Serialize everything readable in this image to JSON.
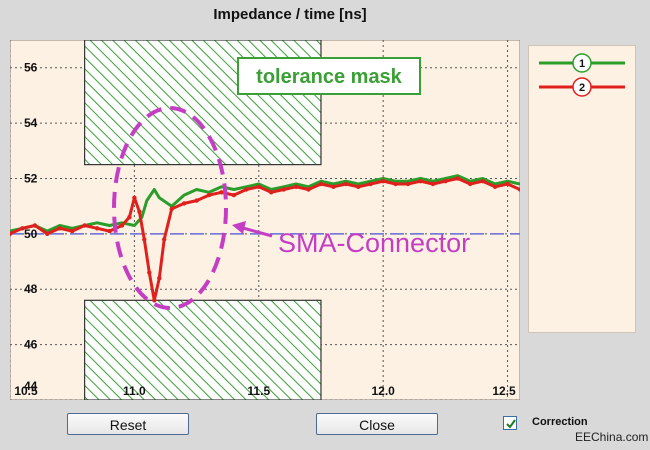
{
  "window": {
    "title": "Impedance  / time [ns]"
  },
  "buttons": {
    "reset_label": "Reset",
    "close_label": "Close"
  },
  "correction": {
    "label": "Correction",
    "checked": true
  },
  "watermark": "EEChina.com",
  "annotations": {
    "mask_label": "tolerance mask",
    "connector_label": "SMA-Connector"
  },
  "colors": {
    "plot_bg": "#fdf1e4",
    "mask_green": "#3aa035",
    "series_1": "#2a9d2a",
    "series_2": "#e0201c",
    "annotation": "#c43ec4",
    "reference_line": "#6a6ad6"
  },
  "legend": [
    {
      "number": "1",
      "color": "#2a9d2a"
    },
    {
      "number": "2",
      "color": "#e0201c"
    }
  ],
  "chart_data": {
    "type": "line",
    "title": "Impedance  / time [ns]",
    "xlabel": "",
    "ylabel": "",
    "xlim": [
      10.5,
      12.55
    ],
    "ylim": [
      44,
      57
    ],
    "x_ticks": [
      "10.5",
      "11.0",
      "11.5",
      "12.0",
      "12.5"
    ],
    "y_ticks": [
      "44",
      "46",
      "48",
      "50",
      "52",
      "54",
      "56"
    ],
    "grid": true,
    "reference_line": 50,
    "tolerance_mask": {
      "upper": {
        "x": [
          10.8,
          11.75
        ],
        "y": [
          52.5,
          57
        ]
      },
      "lower": {
        "x": [
          10.8,
          11.75
        ],
        "y": [
          44,
          47.6
        ]
      }
    },
    "series": [
      {
        "name": "1",
        "x": [
          10.5,
          10.55,
          10.6,
          10.65,
          10.7,
          10.75,
          10.8,
          10.85,
          10.9,
          10.95,
          11.0,
          11.03,
          11.05,
          11.08,
          11.1,
          11.15,
          11.2,
          11.25,
          11.3,
          11.35,
          11.4,
          11.45,
          11.5,
          11.55,
          11.6,
          11.65,
          11.7,
          11.75,
          11.8,
          11.85,
          11.9,
          11.95,
          12.0,
          12.05,
          12.1,
          12.15,
          12.2,
          12.25,
          12.3,
          12.35,
          12.4,
          12.45,
          12.5,
          12.55
        ],
        "y": [
          50.1,
          50.2,
          50.3,
          50.1,
          50.3,
          50.2,
          50.3,
          50.4,
          50.3,
          50.4,
          50.3,
          50.6,
          51.2,
          51.6,
          51.3,
          51.0,
          51.4,
          51.6,
          51.5,
          51.7,
          51.6,
          51.7,
          51.8,
          51.6,
          51.7,
          51.8,
          51.7,
          51.9,
          51.8,
          51.9,
          51.8,
          51.9,
          52.0,
          51.9,
          51.9,
          52.0,
          51.9,
          52.0,
          52.1,
          51.9,
          52.0,
          51.8,
          51.9,
          51.8
        ]
      },
      {
        "name": "2",
        "x": [
          10.5,
          10.55,
          10.6,
          10.65,
          10.7,
          10.75,
          10.8,
          10.85,
          10.9,
          10.95,
          10.98,
          11.0,
          11.02,
          11.04,
          11.06,
          11.08,
          11.1,
          11.12,
          11.15,
          11.2,
          11.25,
          11.3,
          11.35,
          11.4,
          11.45,
          11.5,
          11.55,
          11.6,
          11.65,
          11.7,
          11.75,
          11.8,
          11.85,
          11.9,
          11.95,
          12.0,
          12.05,
          12.1,
          12.15,
          12.2,
          12.25,
          12.3,
          12.35,
          12.4,
          12.45,
          12.5,
          12.55
        ],
        "y": [
          50.0,
          50.2,
          50.3,
          50.0,
          50.2,
          50.1,
          50.3,
          50.2,
          50.1,
          50.3,
          50.6,
          51.3,
          50.8,
          49.8,
          48.6,
          47.6,
          48.4,
          49.8,
          50.9,
          51.1,
          51.2,
          51.4,
          51.5,
          51.4,
          51.6,
          51.7,
          51.5,
          51.6,
          51.7,
          51.6,
          51.8,
          51.7,
          51.8,
          51.7,
          51.8,
          51.9,
          51.8,
          51.8,
          51.9,
          51.8,
          51.9,
          52.0,
          51.8,
          51.9,
          51.7,
          51.8,
          51.6
        ]
      }
    ]
  }
}
